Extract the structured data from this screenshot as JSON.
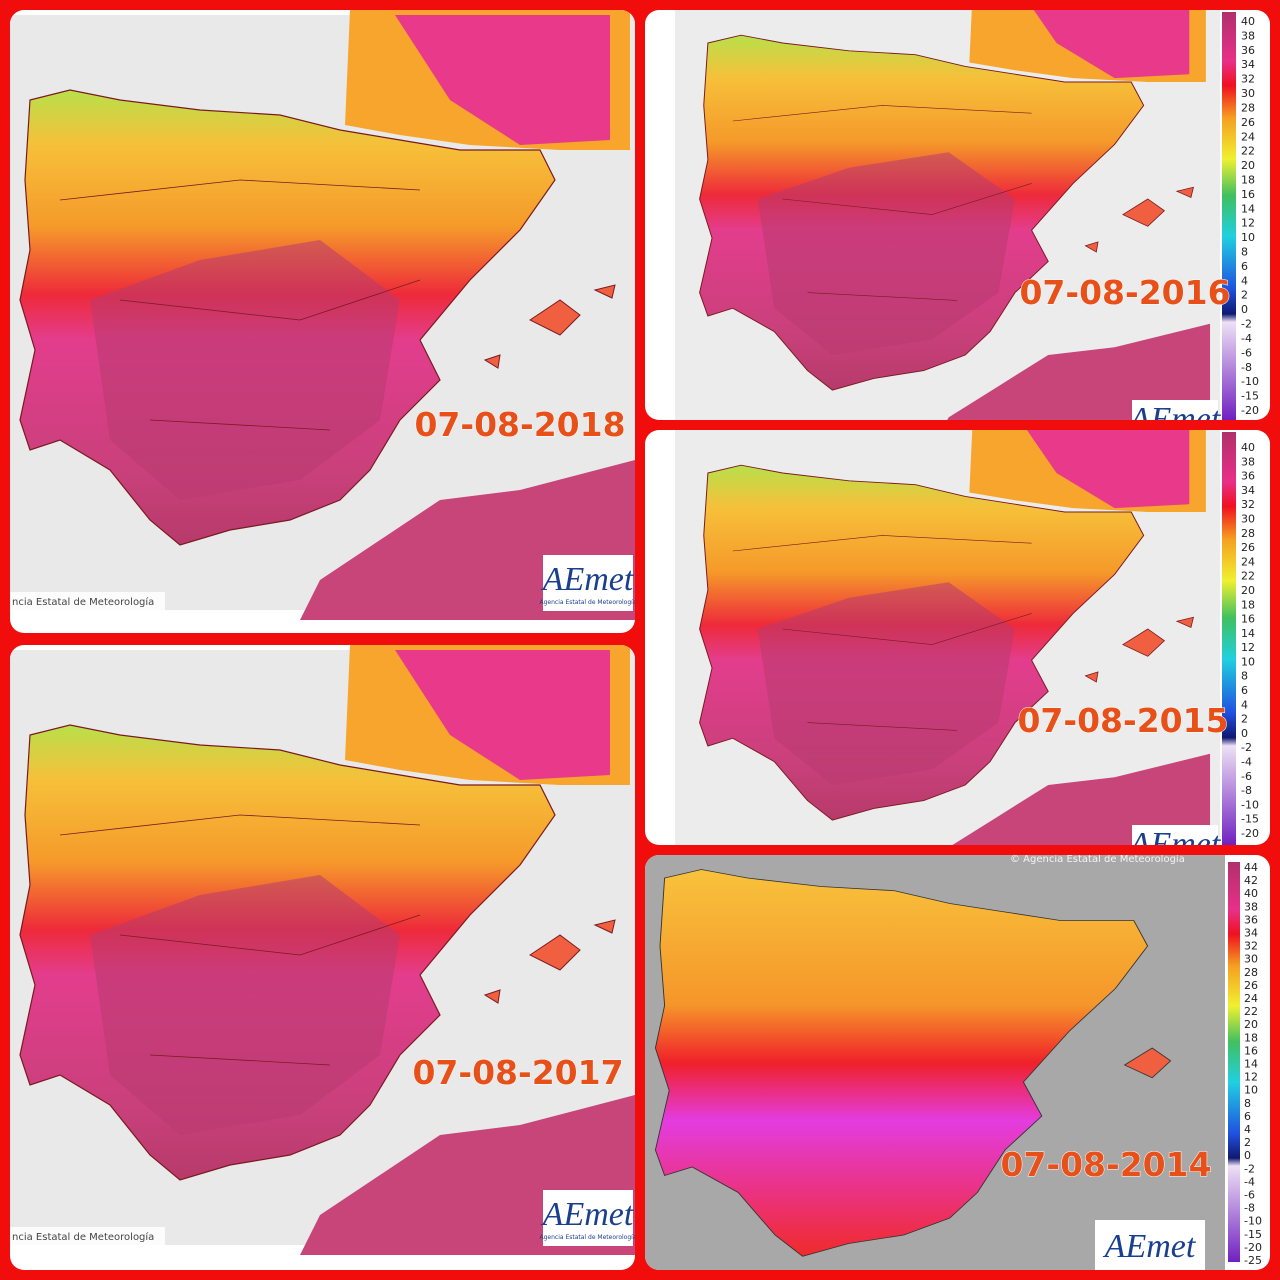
{
  "panels": [
    {
      "date": "07-08-2018",
      "logo": "AEmet",
      "agency": "Agencia Estatal de Meteorología",
      "credit": "ncia Estatal de Meteorología"
    },
    {
      "date": "07-08-2016",
      "logo": "AEmet",
      "scale": [
        40,
        38,
        36,
        34,
        32,
        30,
        28,
        26,
        24,
        22,
        20,
        18,
        16,
        14,
        12,
        10,
        8,
        6,
        4,
        2,
        0,
        -2,
        -4,
        -6,
        -8,
        -10,
        -15,
        -20
      ]
    },
    {
      "date": "07-08-2015",
      "logo": "AEmet",
      "scale": [
        40,
        38,
        36,
        34,
        32,
        30,
        28,
        26,
        24,
        22,
        20,
        18,
        16,
        14,
        12,
        10,
        8,
        6,
        4,
        2,
        0,
        -2,
        -4,
        -6,
        -8,
        -10,
        -15,
        -20
      ]
    },
    {
      "date": "07-08-2017",
      "logo": "AEmet",
      "agency": "Agencia Estatal de Meteorología",
      "credit": "ncia Estatal de Meteorología"
    },
    {
      "date": "07-08-2014",
      "logo": "AEmet",
      "credit": "© Agencia Estatal de Meteorología",
      "scale": [
        44,
        42,
        40,
        38,
        36,
        34,
        32,
        30,
        28,
        26,
        24,
        22,
        20,
        18,
        16,
        14,
        12,
        10,
        8,
        6,
        4,
        2,
        0,
        -2,
        -4,
        -6,
        -8,
        -10,
        -15,
        -20,
        -25
      ]
    }
  ]
}
